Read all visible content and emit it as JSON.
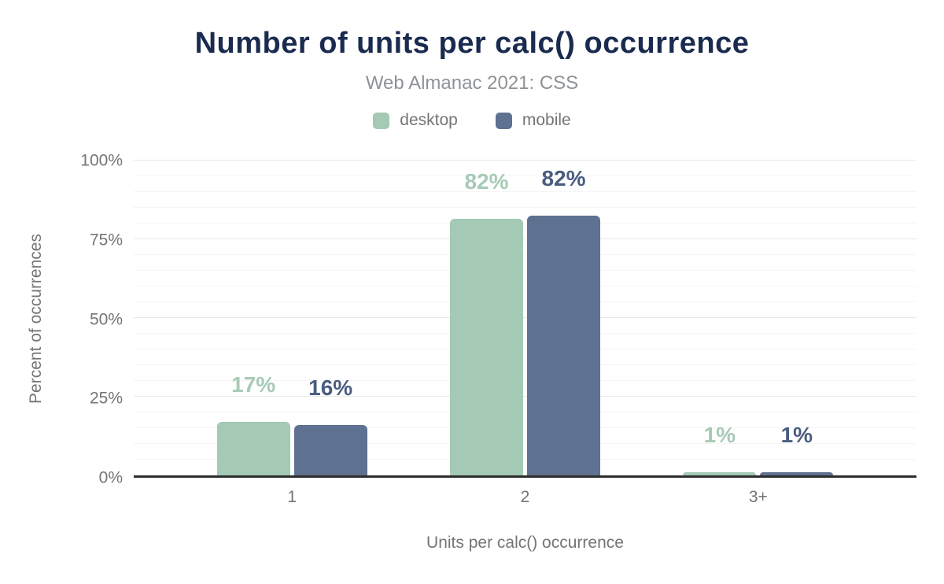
{
  "page": {
    "background": "#ffffff"
  },
  "colors": {
    "title": "#1a2b4f",
    "subtitle": "#8e9296",
    "axis_text": "#757575",
    "axis_line": "#2e2e2e",
    "grid_major": "#e8e8e8",
    "grid_minor": "#f5f5f5",
    "desktop": "#a4c9b4",
    "mobile": "#5f7190",
    "desktop_label": "#a7cab6",
    "mobile_label": "#4a5c80"
  },
  "chart_data": {
    "type": "bar",
    "title": "Number of units per calc() occurrence",
    "subtitle": "Web Almanac 2021: CSS",
    "categories": [
      "1",
      "2",
      "3+"
    ],
    "series": [
      {
        "name": "desktop",
        "values": [
          17,
          81.6,
          1
        ],
        "labels": [
          "17%",
          "82%",
          "1%"
        ],
        "color": "#a4c9b4",
        "label_color": "#a7cab6"
      },
      {
        "name": "mobile",
        "values": [
          16,
          82.4,
          1
        ],
        "labels": [
          "16%",
          "82%",
          "1%"
        ],
        "color": "#5f7190",
        "label_color": "#4a5c80"
      }
    ],
    "xlabel": "Units per calc() occurrence",
    "ylabel": "Percent of occurrences",
    "ylim": [
      0,
      100
    ],
    "yticks": [
      {
        "value": 0,
        "label": "0%"
      },
      {
        "value": 25,
        "label": "25%"
      },
      {
        "value": 50,
        "label": "50%"
      },
      {
        "value": 75,
        "label": "75%"
      },
      {
        "value": 100,
        "label": "100%"
      }
    ],
    "minor_grid_step": 5,
    "major_grid_step": 25,
    "grid": true,
    "legend_position": "top"
  }
}
